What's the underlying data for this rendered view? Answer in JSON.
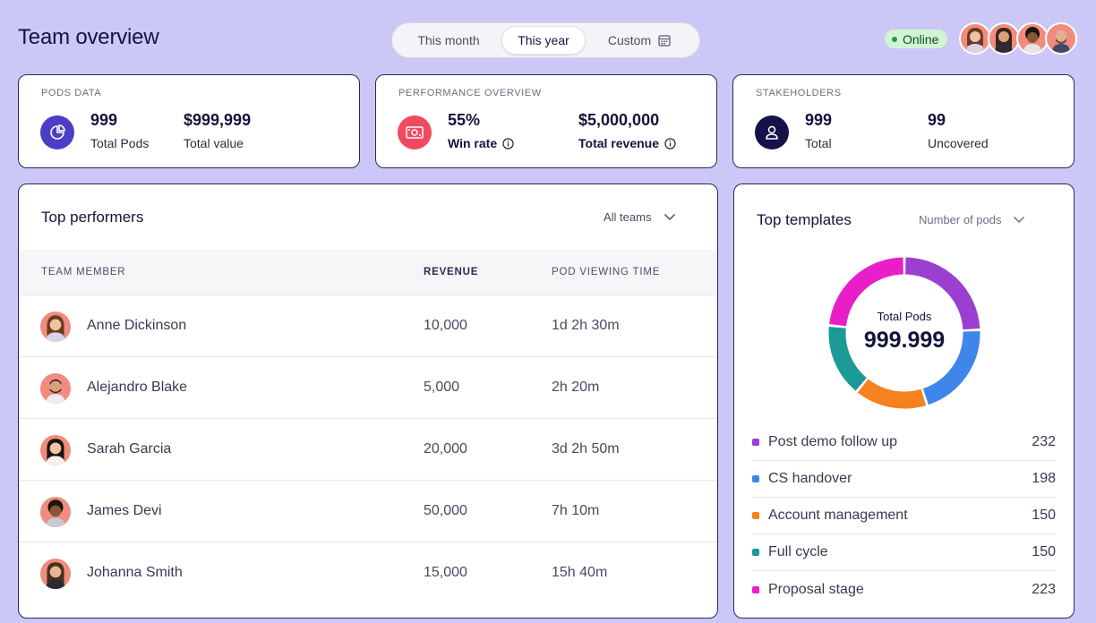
{
  "header": {
    "title": "Team overview",
    "periods": [
      "This month",
      "This year",
      "Custom"
    ],
    "selected_period": "This year",
    "status": "Online"
  },
  "cards": {
    "pods": {
      "label": "PODS DATA",
      "stat1_value": "999",
      "stat1_caption": "Total Pods",
      "stat2_value": "$999,999",
      "stat2_caption": "Total value",
      "icon_color": "#4a3fc4"
    },
    "performance": {
      "label": "PERFORMANCE OVERVIEW",
      "stat1_value": "55%",
      "stat1_caption": "Win rate",
      "stat2_value": "$5,000,000",
      "stat2_caption": "Total revenue",
      "icon_color": "#ef4a5f"
    },
    "stakeholders": {
      "label": "STAKEHOLDERS",
      "stat1_value": "999",
      "stat1_caption": "Total",
      "stat2_value": "99",
      "stat2_caption": "Uncovered",
      "icon_color": "#14124a"
    }
  },
  "performers": {
    "title": "Top performers",
    "filter": "All teams",
    "columns": [
      "TEAM MEMBER",
      "REVENUE",
      "POD VIEWING TIME"
    ],
    "rows": [
      {
        "name": "Anne Dickinson",
        "revenue": "10,000",
        "time": "1d 2h 30m"
      },
      {
        "name": "Alejandro Blake",
        "revenue": "5,000",
        "time": "2h 20m"
      },
      {
        "name": "Sarah Garcia",
        "revenue": "20,000",
        "time": "3d 2h 50m"
      },
      {
        "name": "James Devi",
        "revenue": "50,000",
        "time": "7h 10m"
      },
      {
        "name": "Johanna Smith",
        "revenue": "15,000",
        "time": "15h 40m"
      }
    ]
  },
  "templates": {
    "title": "Top templates",
    "filter": "Number of pods",
    "center_label": "Total Pods",
    "center_value": "999.999",
    "items": [
      {
        "name": "Post demo follow up",
        "value": "232",
        "count": 232,
        "color": "#9b3fd0"
      },
      {
        "name": "CS handover",
        "value": "198",
        "count": 198,
        "color": "#3f86ea"
      },
      {
        "name": "Account management",
        "value": "150",
        "count": 150,
        "color": "#f4821f"
      },
      {
        "name": "Full cycle",
        "value": "150",
        "count": 150,
        "color": "#1b9a96"
      },
      {
        "name": "Proposal stage",
        "value": "223",
        "count": 223,
        "color": "#e81fc8"
      }
    ]
  }
}
